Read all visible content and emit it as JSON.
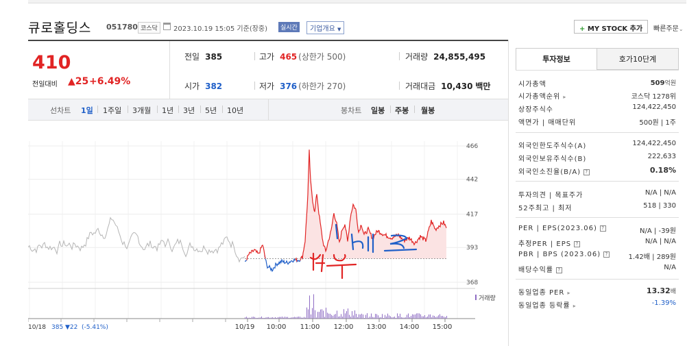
{
  "header": {
    "name": "큐로홀딩스",
    "code": "051780",
    "market": "코스닥",
    "datetime": "2023.10.19 15:05 기준(장중)",
    "realtime": "실시간",
    "company_info": "기업개요",
    "mystock": "MY STOCK 추가",
    "quick_order": "빠른주문"
  },
  "summary": {
    "price": "410",
    "change_label": "전일대비",
    "change_value": "25",
    "change_rate": "+6.49%",
    "prev_label": "전일",
    "prev": "385",
    "high_label": "고가",
    "high": "465",
    "high_limit": "(상한가 500)",
    "volume_label": "거래량",
    "volume": "24,855,495",
    "open_label": "시가",
    "open": "382",
    "low_label": "저가",
    "low": "376",
    "low_limit": "(하한가 270)",
    "amount_label": "거래대금",
    "amount": "10,430",
    "amount_unit": "백만"
  },
  "chart_tabs": {
    "period_label": "선차트",
    "periods": [
      "1일",
      "1주일",
      "3개월",
      "1년",
      "3년",
      "5년",
      "10년"
    ],
    "candle_label": "봉차트",
    "candles": [
      "일봉",
      "주봉",
      "월봉"
    ]
  },
  "chart_data": {
    "type": "line",
    "y_ticks": [
      "466",
      "442",
      "417",
      "393",
      "368"
    ],
    "ylim": [
      368,
      466
    ],
    "volume_label": "거래량",
    "x_ticks": [
      "10/19",
      "10:00",
      "11:00",
      "12:00",
      "13:00",
      "14:00",
      "15:00"
    ],
    "prev_day_label": "10/18",
    "prev_day_close": "385",
    "prev_day_change": "▼22",
    "prev_day_rate": "(-5.41%)",
    "annotations": [
      "매도",
      "매수"
    ],
    "colors": {
      "up": "#e12424",
      "down": "#1f5fc8",
      "prev": "#b5b5b5",
      "fill": "#fbe3e3"
    }
  },
  "side": {
    "tabs": [
      "투자정보",
      "호가10단계"
    ],
    "rows1": [
      {
        "k": "시가총액",
        "v": "509",
        "u": "억원"
      },
      {
        "k": "시가총액순위",
        "v": "코스닥 1278위"
      },
      {
        "k": "상장주식수",
        "v": "124,422,450"
      },
      {
        "k": "액면가 | 매매단위",
        "v": "500원 | 1주"
      }
    ],
    "rows2": [
      {
        "k": "외국인한도주식수(A)",
        "v": "124,422,450"
      },
      {
        "k": "외국인보유주식수(B)",
        "v": "222,633"
      },
      {
        "k": "외국인소진율(B/A)",
        "v": "0.18%"
      }
    ],
    "rows3": [
      {
        "k": "투자의견 | 목표주가",
        "v": "N/A | N/A"
      },
      {
        "k": "52주최고 | 최저",
        "v": "518 | 330"
      }
    ],
    "rows4": [
      {
        "k": "PER | EPS(2023.06)",
        "v": "N/A | -39원"
      },
      {
        "k": "추정PER | EPS",
        "v": "N/A | N/A"
      },
      {
        "k": "PBR | BPS (2023.06)",
        "v": "1.42배 | 289원"
      },
      {
        "k": "배당수익률",
        "v": "N/A"
      }
    ],
    "rows5": [
      {
        "k": "동일업종 PER",
        "v": "13.32",
        "u": "배"
      },
      {
        "k": "동일업종 등락률",
        "v": "-1.39%"
      }
    ]
  }
}
